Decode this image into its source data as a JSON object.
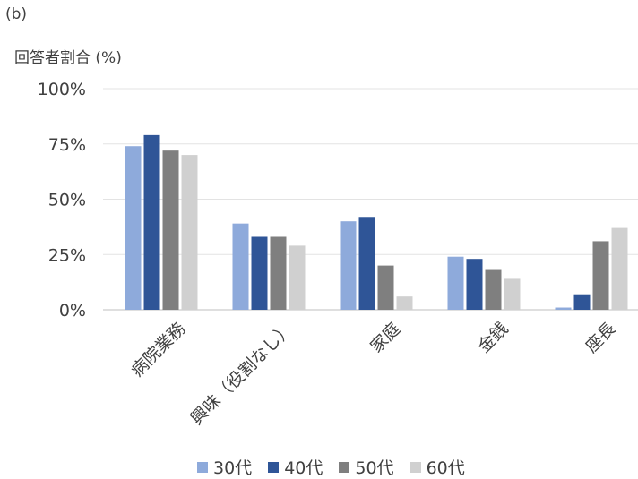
{
  "panel_label": "(b)",
  "chart_data": {
    "type": "bar",
    "title": "",
    "ylabel": "回答者割合 (%)",
    "xlabel": "",
    "categories": [
      "病院業務",
      "興味（役割なし）",
      "家庭",
      "金銭",
      "座長"
    ],
    "ylim": [
      0,
      100
    ],
    "yticks": [
      "0%",
      "25%",
      "50%",
      "75%",
      "100%"
    ],
    "grid": true,
    "legend_position": "bottom",
    "series": [
      {
        "name": "30代",
        "color": "#8eaadb",
        "values": [
          74,
          39,
          40,
          24,
          1
        ]
      },
      {
        "name": "40代",
        "color": "#2f5597",
        "values": [
          79,
          33,
          42,
          23,
          7
        ]
      },
      {
        "name": "50代",
        "color": "#7f7f7f",
        "values": [
          72,
          33,
          20,
          18,
          31
        ]
      },
      {
        "name": "60代",
        "color": "#d0d0d0",
        "values": [
          70,
          29,
          6,
          14,
          37
        ]
      }
    ]
  }
}
